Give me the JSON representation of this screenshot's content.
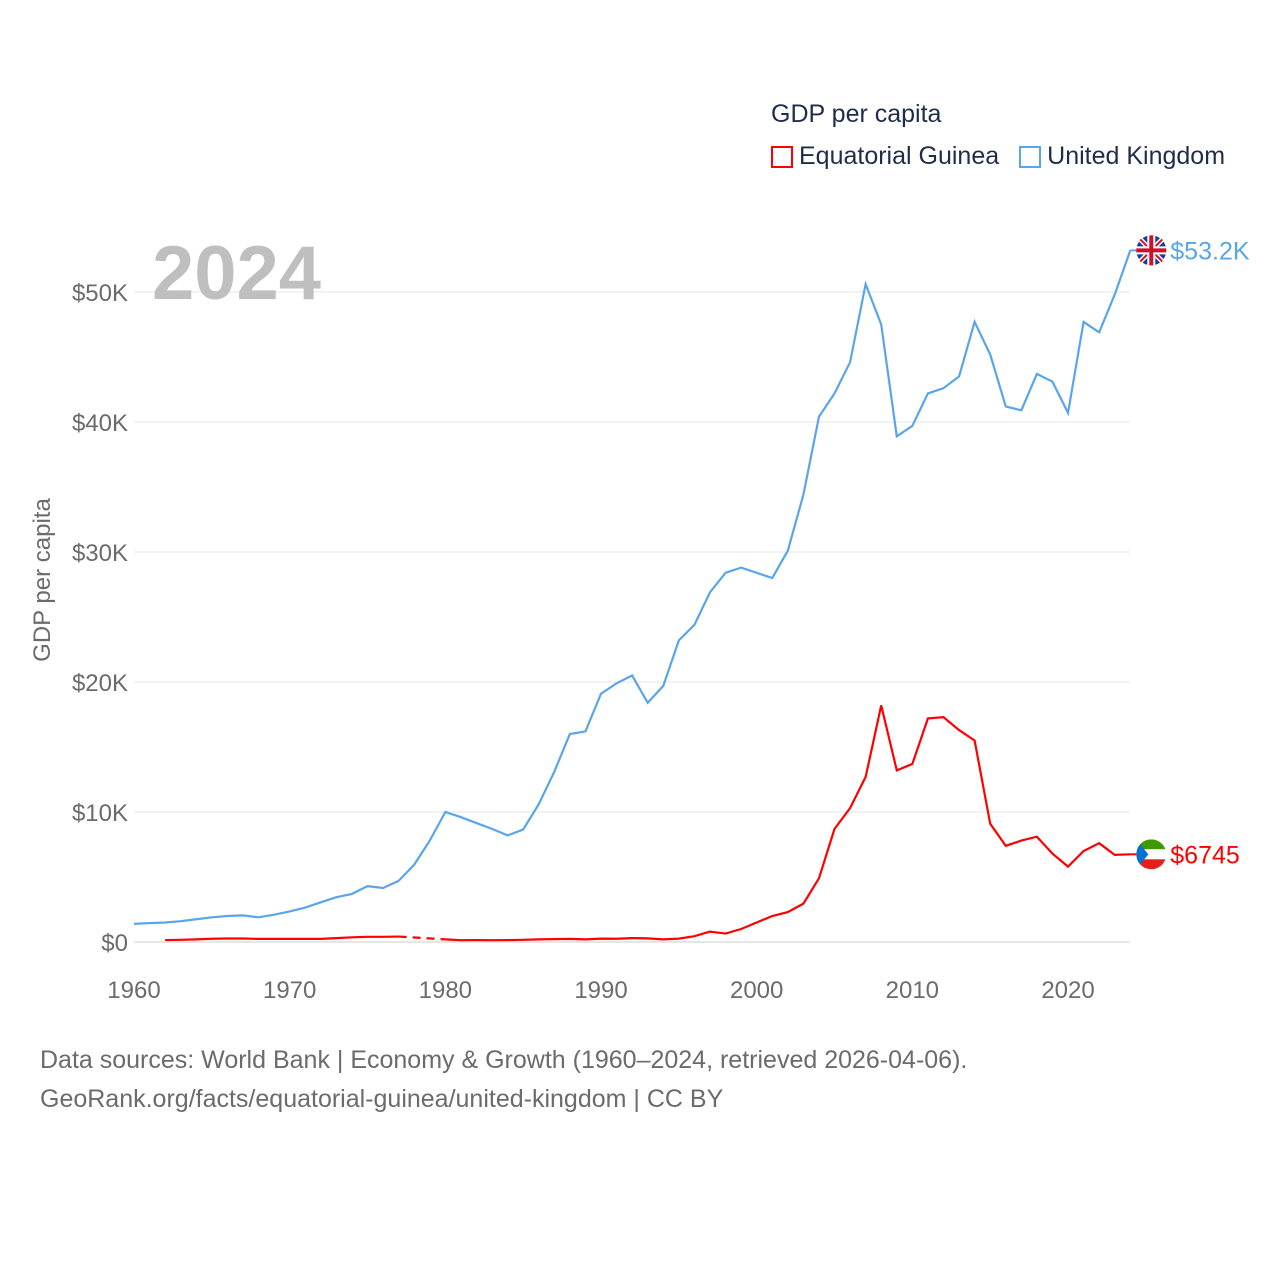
{
  "legend": {
    "title": "GDP per capita",
    "items": [
      {
        "label": "Equatorial Guinea",
        "color": "#ff0000"
      },
      {
        "label": "United Kingdom",
        "color": "#5aa5ea"
      }
    ]
  },
  "year_label": "2024",
  "footer": {
    "line1": "Data sources: World Bank | Economy & Growth (1960–2024, retrieved 2026-04-06).",
    "line2": "GeoRank.org/facts/equatorial-guinea/united-kingdom | CC BY"
  },
  "chart_data": {
    "type": "line",
    "ylabel": "GDP per capita",
    "xlabel": "",
    "xlim": [
      1960,
      2024
    ],
    "ylim": [
      0,
      53200
    ],
    "x_ticks": [
      "1960",
      "1970",
      "1980",
      "1990",
      "2000",
      "2010",
      "2020"
    ],
    "y_ticks": [
      {
        "v": 0,
        "label": "$0"
      },
      {
        "v": 10000,
        "label": "$10K"
      },
      {
        "v": 20000,
        "label": "$20K"
      },
      {
        "v": 30000,
        "label": "$30K"
      },
      {
        "v": 40000,
        "label": "$40K"
      },
      {
        "v": 50000,
        "label": "$50K"
      }
    ],
    "grid": true,
    "series": [
      {
        "name": "United Kingdom",
        "color": "#5aa5ea",
        "end_label": "$53.2K",
        "start": 1960,
        "values": [
          1.4,
          1.45,
          1.5,
          1.6,
          1.75,
          1.9,
          2.0,
          2.05,
          1.9,
          2.1,
          2.35,
          2.65,
          3.05,
          3.45,
          3.7,
          4.3,
          4.15,
          4.7,
          5.95,
          7.8,
          10.0,
          9.6,
          9.15,
          8.7,
          8.2,
          8.65,
          10.6,
          13.1,
          16.0,
          16.2,
          19.1,
          19.9,
          20.5,
          18.4,
          19.7,
          23.2,
          24.4,
          26.9,
          28.4,
          28.8,
          28.4,
          28.0,
          30.1,
          34.4,
          40.4,
          42.2,
          44.6,
          50.6,
          47.5,
          38.9,
          39.7,
          42.2,
          42.6,
          43.5,
          47.7,
          45.2,
          41.2,
          40.9,
          43.7,
          43.1,
          40.7,
          47.7,
          46.9,
          49.8,
          53.2
        ]
      },
      {
        "name": "Equatorial Guinea",
        "color": "#ff0000",
        "end_label": "$6745",
        "start": 1962,
        "values": [
          0.15,
          0.17,
          0.2,
          0.25,
          0.27,
          0.27,
          0.24,
          0.24,
          0.24,
          0.24,
          0.24,
          0.3,
          0.36,
          0.4,
          0.4,
          0.42,
          null,
          null,
          0.2,
          0.14,
          0.15,
          0.14,
          0.15,
          0.17,
          0.2,
          0.22,
          0.24,
          0.2,
          0.26,
          0.25,
          0.3,
          0.28,
          0.2,
          0.26,
          0.45,
          0.8,
          0.65,
          1.0,
          1.5,
          2.0,
          2.3,
          2.95,
          4.9,
          8.7,
          10.3,
          12.7,
          18.2,
          13.2,
          13.7,
          17.2,
          17.3,
          16.3,
          15.5,
          9.1,
          7.4,
          7.8,
          8.1,
          6.8,
          5.8,
          7.0,
          7.6,
          6.7,
          6.745
        ]
      }
    ],
    "values_unit": "thousand USD"
  }
}
